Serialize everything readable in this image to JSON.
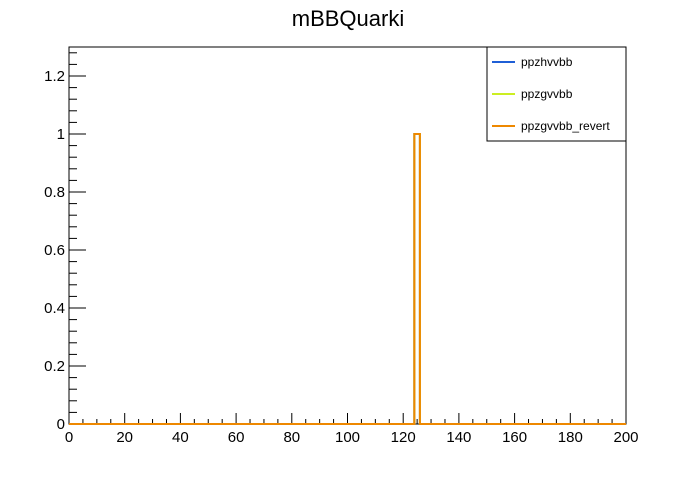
{
  "chart_data": {
    "type": "line",
    "title": "mBBQuarki",
    "xlabel": "",
    "ylabel": "",
    "xlim": [
      0,
      200
    ],
    "ylim": [
      0,
      1.3
    ],
    "x_ticks": [
      0,
      20,
      40,
      60,
      80,
      100,
      120,
      140,
      160,
      180,
      200
    ],
    "x_tick_labels": [
      "0",
      "20",
      "40",
      "60",
      "80",
      "100",
      "120",
      "140",
      "160",
      "180",
      "200"
    ],
    "y_ticks": [
      0,
      0.2,
      0.4,
      0.6,
      0.8,
      1,
      1.2
    ],
    "y_tick_labels": [
      "0",
      "0.2",
      "0.4",
      "0.6",
      "0.8",
      "1",
      "1.2"
    ],
    "grid": false,
    "legend_position": "top-right",
    "bin_edges": [
      0,
      124,
      126,
      200
    ],
    "series": [
      {
        "name": "ppzhvvbb",
        "color": "#1f5fd6",
        "values": [
          0,
          1,
          0
        ]
      },
      {
        "name": "ppzgvvbb",
        "color": "#ccee22",
        "values": [
          0,
          1,
          0
        ]
      },
      {
        "name": "ppzgvvbb_revert",
        "color": "#ee8800",
        "values": [
          0,
          1,
          0
        ]
      }
    ]
  }
}
